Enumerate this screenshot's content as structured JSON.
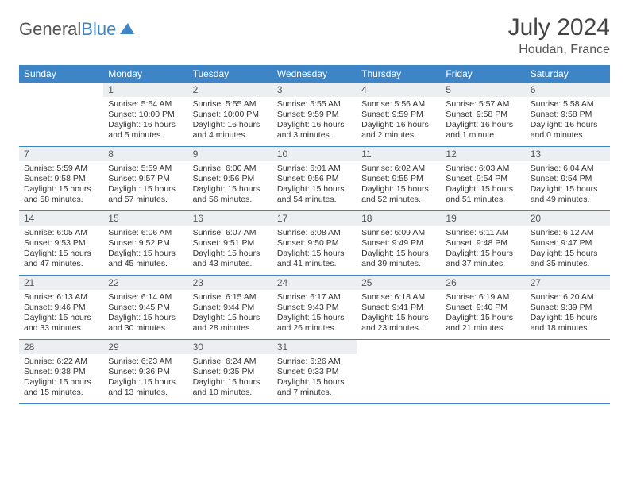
{
  "logo": {
    "part1": "General",
    "part2": "Blue"
  },
  "title": "July 2024",
  "location": "Houdan, France",
  "colors": {
    "accent": "#3d85c6",
    "daynum_bg": "#eceff1"
  },
  "weekdays": [
    "Sunday",
    "Monday",
    "Tuesday",
    "Wednesday",
    "Thursday",
    "Friday",
    "Saturday"
  ],
  "weeks": [
    [
      {
        "n": "",
        "sr": "",
        "ss": "",
        "d1": "",
        "d2": "",
        "empty": true
      },
      {
        "n": "1",
        "sr": "Sunrise: 5:54 AM",
        "ss": "Sunset: 10:00 PM",
        "d1": "Daylight: 16 hours",
        "d2": "and 5 minutes."
      },
      {
        "n": "2",
        "sr": "Sunrise: 5:55 AM",
        "ss": "Sunset: 10:00 PM",
        "d1": "Daylight: 16 hours",
        "d2": "and 4 minutes."
      },
      {
        "n": "3",
        "sr": "Sunrise: 5:55 AM",
        "ss": "Sunset: 9:59 PM",
        "d1": "Daylight: 16 hours",
        "d2": "and 3 minutes."
      },
      {
        "n": "4",
        "sr": "Sunrise: 5:56 AM",
        "ss": "Sunset: 9:59 PM",
        "d1": "Daylight: 16 hours",
        "d2": "and 2 minutes."
      },
      {
        "n": "5",
        "sr": "Sunrise: 5:57 AM",
        "ss": "Sunset: 9:58 PM",
        "d1": "Daylight: 16 hours",
        "d2": "and 1 minute."
      },
      {
        "n": "6",
        "sr": "Sunrise: 5:58 AM",
        "ss": "Sunset: 9:58 PM",
        "d1": "Daylight: 16 hours",
        "d2": "and 0 minutes."
      }
    ],
    [
      {
        "n": "7",
        "sr": "Sunrise: 5:59 AM",
        "ss": "Sunset: 9:58 PM",
        "d1": "Daylight: 15 hours",
        "d2": "and 58 minutes."
      },
      {
        "n": "8",
        "sr": "Sunrise: 5:59 AM",
        "ss": "Sunset: 9:57 PM",
        "d1": "Daylight: 15 hours",
        "d2": "and 57 minutes."
      },
      {
        "n": "9",
        "sr": "Sunrise: 6:00 AM",
        "ss": "Sunset: 9:56 PM",
        "d1": "Daylight: 15 hours",
        "d2": "and 56 minutes."
      },
      {
        "n": "10",
        "sr": "Sunrise: 6:01 AM",
        "ss": "Sunset: 9:56 PM",
        "d1": "Daylight: 15 hours",
        "d2": "and 54 minutes."
      },
      {
        "n": "11",
        "sr": "Sunrise: 6:02 AM",
        "ss": "Sunset: 9:55 PM",
        "d1": "Daylight: 15 hours",
        "d2": "and 52 minutes."
      },
      {
        "n": "12",
        "sr": "Sunrise: 6:03 AM",
        "ss": "Sunset: 9:54 PM",
        "d1": "Daylight: 15 hours",
        "d2": "and 51 minutes."
      },
      {
        "n": "13",
        "sr": "Sunrise: 6:04 AM",
        "ss": "Sunset: 9:54 PM",
        "d1": "Daylight: 15 hours",
        "d2": "and 49 minutes."
      }
    ],
    [
      {
        "n": "14",
        "sr": "Sunrise: 6:05 AM",
        "ss": "Sunset: 9:53 PM",
        "d1": "Daylight: 15 hours",
        "d2": "and 47 minutes."
      },
      {
        "n": "15",
        "sr": "Sunrise: 6:06 AM",
        "ss": "Sunset: 9:52 PM",
        "d1": "Daylight: 15 hours",
        "d2": "and 45 minutes."
      },
      {
        "n": "16",
        "sr": "Sunrise: 6:07 AM",
        "ss": "Sunset: 9:51 PM",
        "d1": "Daylight: 15 hours",
        "d2": "and 43 minutes."
      },
      {
        "n": "17",
        "sr": "Sunrise: 6:08 AM",
        "ss": "Sunset: 9:50 PM",
        "d1": "Daylight: 15 hours",
        "d2": "and 41 minutes."
      },
      {
        "n": "18",
        "sr": "Sunrise: 6:09 AM",
        "ss": "Sunset: 9:49 PM",
        "d1": "Daylight: 15 hours",
        "d2": "and 39 minutes."
      },
      {
        "n": "19",
        "sr": "Sunrise: 6:11 AM",
        "ss": "Sunset: 9:48 PM",
        "d1": "Daylight: 15 hours",
        "d2": "and 37 minutes."
      },
      {
        "n": "20",
        "sr": "Sunrise: 6:12 AM",
        "ss": "Sunset: 9:47 PM",
        "d1": "Daylight: 15 hours",
        "d2": "and 35 minutes."
      }
    ],
    [
      {
        "n": "21",
        "sr": "Sunrise: 6:13 AM",
        "ss": "Sunset: 9:46 PM",
        "d1": "Daylight: 15 hours",
        "d2": "and 33 minutes."
      },
      {
        "n": "22",
        "sr": "Sunrise: 6:14 AM",
        "ss": "Sunset: 9:45 PM",
        "d1": "Daylight: 15 hours",
        "d2": "and 30 minutes."
      },
      {
        "n": "23",
        "sr": "Sunrise: 6:15 AM",
        "ss": "Sunset: 9:44 PM",
        "d1": "Daylight: 15 hours",
        "d2": "and 28 minutes."
      },
      {
        "n": "24",
        "sr": "Sunrise: 6:17 AM",
        "ss": "Sunset: 9:43 PM",
        "d1": "Daylight: 15 hours",
        "d2": "and 26 minutes."
      },
      {
        "n": "25",
        "sr": "Sunrise: 6:18 AM",
        "ss": "Sunset: 9:41 PM",
        "d1": "Daylight: 15 hours",
        "d2": "and 23 minutes."
      },
      {
        "n": "26",
        "sr": "Sunrise: 6:19 AM",
        "ss": "Sunset: 9:40 PM",
        "d1": "Daylight: 15 hours",
        "d2": "and 21 minutes."
      },
      {
        "n": "27",
        "sr": "Sunrise: 6:20 AM",
        "ss": "Sunset: 9:39 PM",
        "d1": "Daylight: 15 hours",
        "d2": "and 18 minutes."
      }
    ],
    [
      {
        "n": "28",
        "sr": "Sunrise: 6:22 AM",
        "ss": "Sunset: 9:38 PM",
        "d1": "Daylight: 15 hours",
        "d2": "and 15 minutes."
      },
      {
        "n": "29",
        "sr": "Sunrise: 6:23 AM",
        "ss": "Sunset: 9:36 PM",
        "d1": "Daylight: 15 hours",
        "d2": "and 13 minutes."
      },
      {
        "n": "30",
        "sr": "Sunrise: 6:24 AM",
        "ss": "Sunset: 9:35 PM",
        "d1": "Daylight: 15 hours",
        "d2": "and 10 minutes."
      },
      {
        "n": "31",
        "sr": "Sunrise: 6:26 AM",
        "ss": "Sunset: 9:33 PM",
        "d1": "Daylight: 15 hours",
        "d2": "and 7 minutes."
      },
      {
        "n": "",
        "sr": "",
        "ss": "",
        "d1": "",
        "d2": "",
        "empty": true
      },
      {
        "n": "",
        "sr": "",
        "ss": "",
        "d1": "",
        "d2": "",
        "empty": true
      },
      {
        "n": "",
        "sr": "",
        "ss": "",
        "d1": "",
        "d2": "",
        "empty": true
      }
    ]
  ]
}
